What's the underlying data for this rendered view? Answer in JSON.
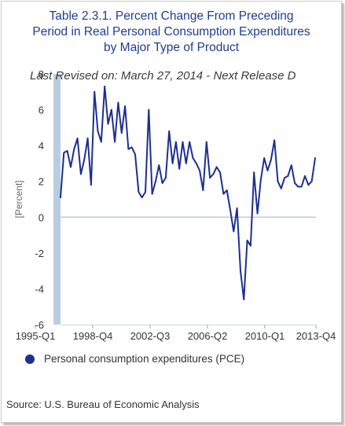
{
  "title_lines": [
    "Table 2.3.1. Percent Change From Preceding",
    "Period in Real Personal Consumption Expenditures",
    "by Major Type of Product"
  ],
  "subtitle": "Last Revised on: March 27, 2014 - Next Release D",
  "source": "Source: U.S. Bureau of Economic Analysis",
  "colors": {
    "series": "#1d2f8f",
    "title": "#1f3d8f",
    "axis_bar": "#b9cde0",
    "zero_line": "#a9c2d8"
  },
  "chart_data": {
    "type": "line",
    "ylabel": "[Percent]",
    "ylim": [
      -6,
      8
    ],
    "yticks": [
      -6,
      -4,
      -2,
      0,
      2,
      4,
      6,
      8
    ],
    "xtick_labels": [
      "1995-Q1",
      "1998-Q4",
      "2002-Q3",
      "2006-Q2",
      "2010-Q1",
      "2013-Q4"
    ],
    "grid": false,
    "legend_position": "bottom",
    "series": [
      {
        "name": "Personal consumption expenditures (PCE)",
        "x": [
          "1995-Q1",
          "1995-Q2",
          "1995-Q3",
          "1995-Q4",
          "1996-Q1",
          "1996-Q2",
          "1996-Q3",
          "1996-Q4",
          "1997-Q1",
          "1997-Q2",
          "1997-Q3",
          "1997-Q4",
          "1998-Q1",
          "1998-Q2",
          "1998-Q3",
          "1998-Q4",
          "1999-Q1",
          "1999-Q2",
          "1999-Q3",
          "1999-Q4",
          "2000-Q1",
          "2000-Q2",
          "2000-Q3",
          "2000-Q4",
          "2001-Q1",
          "2001-Q2",
          "2001-Q3",
          "2001-Q4",
          "2002-Q1",
          "2002-Q2",
          "2002-Q3",
          "2002-Q4",
          "2003-Q1",
          "2003-Q2",
          "2003-Q3",
          "2003-Q4",
          "2004-Q1",
          "2004-Q2",
          "2004-Q3",
          "2004-Q4",
          "2005-Q1",
          "2005-Q2",
          "2005-Q3",
          "2005-Q4",
          "2006-Q1",
          "2006-Q2",
          "2006-Q3",
          "2006-Q4",
          "2007-Q1",
          "2007-Q2",
          "2007-Q3",
          "2007-Q4",
          "2008-Q1",
          "2008-Q2",
          "2008-Q3",
          "2008-Q4",
          "2009-Q1",
          "2009-Q2",
          "2009-Q3",
          "2009-Q4",
          "2010-Q1",
          "2010-Q2",
          "2010-Q3",
          "2010-Q4",
          "2011-Q1",
          "2011-Q2",
          "2011-Q3",
          "2011-Q4",
          "2012-Q1",
          "2012-Q2",
          "2012-Q3",
          "2012-Q4",
          "2013-Q1",
          "2013-Q2",
          "2013-Q3",
          "2013-Q4"
        ],
        "values": [
          1.1,
          3.6,
          3.7,
          2.8,
          3.8,
          4.4,
          2.4,
          3.2,
          4.4,
          1.8,
          7.0,
          4.8,
          4.2,
          7.3,
          5.2,
          6.0,
          4.2,
          6.4,
          4.7,
          6.2,
          3.8,
          3.9,
          3.5,
          1.4,
          1.1,
          1.4,
          6.0,
          1.3,
          2.0,
          2.9,
          1.9,
          2.2,
          4.8,
          3.0,
          4.2,
          2.7,
          4.2,
          3.0,
          4.2,
          3.3,
          3.0,
          2.6,
          1.5,
          4.2,
          2.2,
          2.4,
          2.8,
          2.5,
          1.3,
          1.5,
          0.4,
          -0.8,
          0.5,
          -3.0,
          -4.6,
          -1.3,
          -1.6,
          2.5,
          0.2,
          2.1,
          3.3,
          2.6,
          3.2,
          4.3,
          2.0,
          1.6,
          2.2,
          2.3,
          2.9,
          1.9,
          1.7,
          1.7,
          2.3,
          1.8,
          2.0,
          3.3
        ]
      }
    ]
  }
}
